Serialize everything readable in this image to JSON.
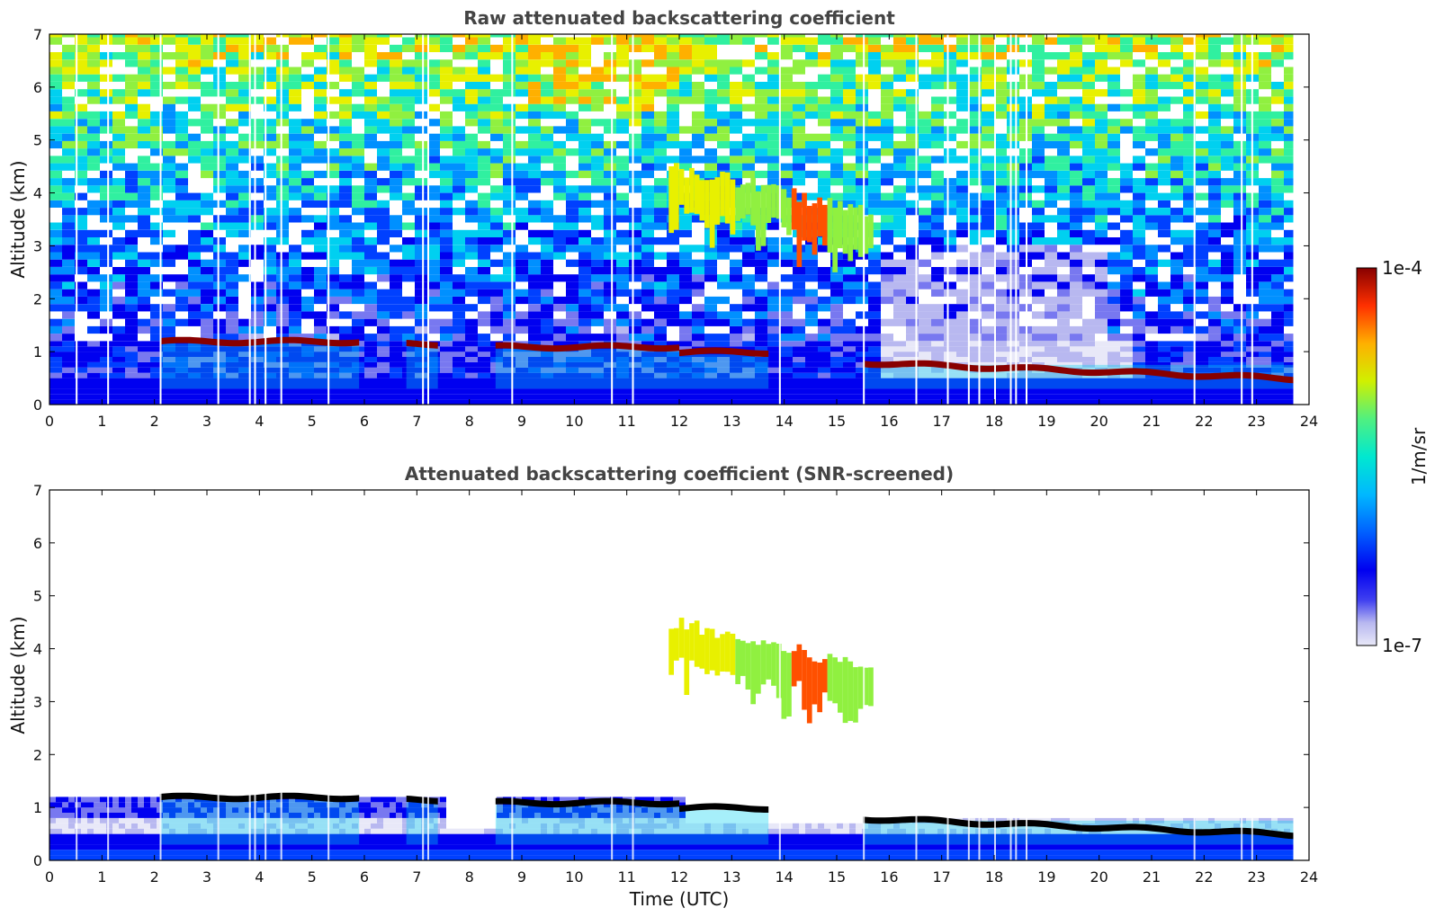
{
  "chart_data": [
    {
      "type": "heatmap",
      "title": "Raw attenuated backscattering coefficient",
      "xlabel": "",
      "ylabel": "Altitude (km)",
      "xlim": [
        0,
        24
      ],
      "ylim": [
        0,
        7
      ],
      "x_ticks": [
        "0",
        "1",
        "2",
        "3",
        "4",
        "5",
        "6",
        "7",
        "8",
        "9",
        "10",
        "11",
        "12",
        "13",
        "14",
        "15",
        "16",
        "17",
        "18",
        "19",
        "20",
        "21",
        "22",
        "23",
        "24"
      ],
      "y_ticks": [
        "0",
        "1",
        "2",
        "3",
        "4",
        "5",
        "6",
        "7"
      ],
      "data_end_time": 23.7,
      "features": [
        {
          "kind": "aerosol_boundary_layer",
          "t_start": 0,
          "t_end": 15.5,
          "alt_top": 1.2
        },
        {
          "kind": "cloud_layer",
          "t_start": 2.1,
          "t_end": 5.9,
          "alt": 1.2
        },
        {
          "kind": "cloud_layer",
          "t_start": 6.8,
          "t_end": 7.4,
          "alt": 1.15
        },
        {
          "kind": "cloud_layer",
          "t_start": 8.5,
          "t_end": 12.0,
          "alt": 1.1
        },
        {
          "kind": "cloud_layer",
          "t_start": 12.0,
          "t_end": 13.7,
          "alt": 1.0
        },
        {
          "kind": "ice_cloud",
          "t_start": 11.8,
          "t_end": 15.7,
          "alt_top": 4.5,
          "alt_bottom": 2.5
        },
        {
          "kind": "cloud_layer",
          "t_start": 15.5,
          "t_end": 23.7,
          "alt": 0.8,
          "alt_end": 0.5
        }
      ],
      "colorbar": {
        "label": "1/m/sr",
        "min_label": "1e-7",
        "max_label": "1e-4",
        "scale": "log"
      }
    },
    {
      "type": "heatmap",
      "title": "Attenuated backscattering coefficient (SNR-screened)",
      "xlabel": "Time (UTC)",
      "ylabel": "Altitude (km)",
      "xlim": [
        0,
        24
      ],
      "ylim": [
        0,
        7
      ],
      "x_ticks": [
        "0",
        "1",
        "2",
        "3",
        "4",
        "5",
        "6",
        "7",
        "8",
        "9",
        "10",
        "11",
        "12",
        "13",
        "14",
        "15",
        "16",
        "17",
        "18",
        "19",
        "20",
        "21",
        "22",
        "23",
        "24"
      ],
      "y_ticks": [
        "0",
        "1",
        "2",
        "3",
        "4",
        "5",
        "6",
        "7"
      ],
      "data_end_time": 23.7,
      "features": [
        {
          "kind": "aerosol_boundary_layer",
          "t_start": 0,
          "t_end": 23.7,
          "alt_top": 1.2
        },
        {
          "kind": "cloud_layer",
          "t_start": 2.1,
          "t_end": 5.9,
          "alt": 1.2
        },
        {
          "kind": "cloud_layer",
          "t_start": 6.8,
          "t_end": 7.4,
          "alt": 1.15
        },
        {
          "kind": "cloud_layer",
          "t_start": 8.5,
          "t_end": 12.0,
          "alt": 1.1
        },
        {
          "kind": "cloud_layer",
          "t_start": 12.0,
          "t_end": 13.7,
          "alt": 1.0
        },
        {
          "kind": "ice_cloud",
          "t_start": 11.8,
          "t_end": 15.7,
          "alt_top": 4.5,
          "alt_bottom": 2.5
        },
        {
          "kind": "cloud_layer",
          "t_start": 15.5,
          "t_end": 23.7,
          "alt": 0.8,
          "alt_end": 0.5
        }
      ]
    }
  ],
  "colors": {
    "colormap": [
      "#e8e8f8",
      "#b8b8f0",
      "#7878f0",
      "#0000f0",
      "#0040ff",
      "#0090ff",
      "#00d0f0",
      "#30f0a0",
      "#90f040",
      "#e8f000",
      "#ffb000",
      "#ff5000",
      "#e00000",
      "#880000"
    ],
    "saturated": "#000000",
    "title": "#444444"
  }
}
